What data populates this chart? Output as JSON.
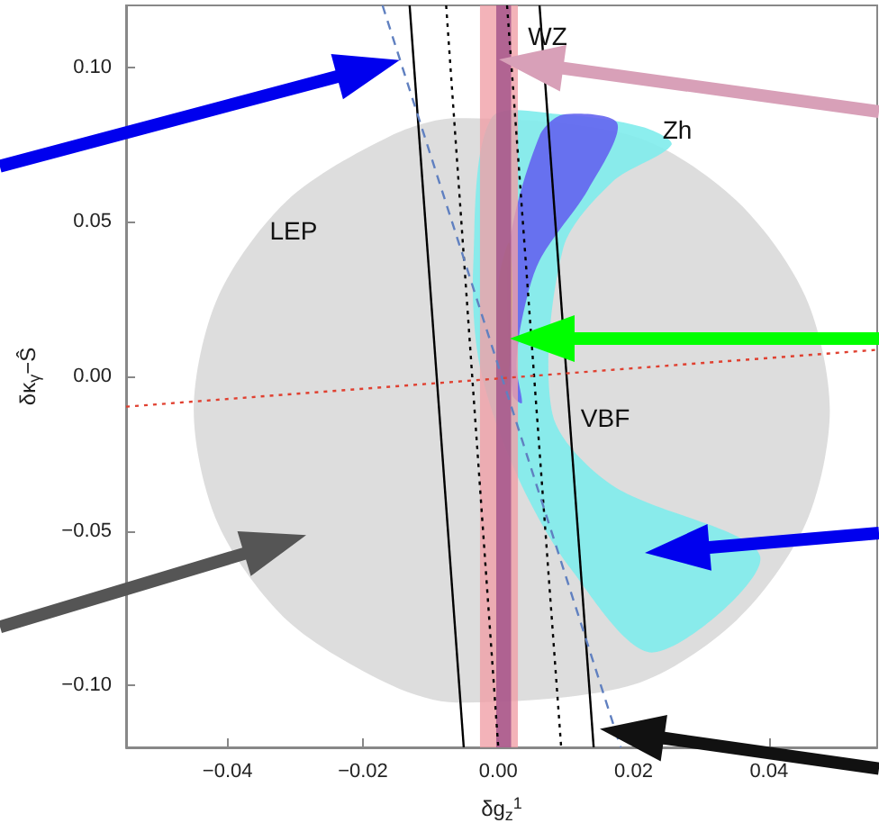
{
  "chart_data": {
    "type": "line",
    "xlabel": "δg$_{z}$$^{1}$",
    "ylabel": "δκ$_{γ}$−Ŝ",
    "xlim": [
      -0.055,
      0.056
    ],
    "ylim": [
      -0.12,
      0.12
    ],
    "xticks": [
      {
        "value": -0.04,
        "label": "−0.04"
      },
      {
        "value": -0.02,
        "label": "−0.02"
      },
      {
        "value": 0,
        "label": "0.00"
      },
      {
        "value": 0.02,
        "label": "0.02"
      },
      {
        "value": 0.04,
        "label": "0.04"
      }
    ],
    "yticks": [
      {
        "value": -0.1,
        "label": "−0.10"
      },
      {
        "value": -0.05,
        "label": "−0.05"
      },
      {
        "value": 0,
        "label": "0.00"
      },
      {
        "value": 0.05,
        "label": "0.05"
      },
      {
        "value": 0.1,
        "label": "0.10"
      }
    ],
    "grid": false,
    "marker": "none",
    "series": [
      {
        "type": "area",
        "name": "LEP",
        "color": "#d9d9d9",
        "x": [
          0.049,
          0.0454,
          0.0352,
          0.02,
          -0.0062,
          -0.016,
          -0.0312,
          -0.0414,
          -0.045,
          -0.0414,
          -0.0312,
          -0.016,
          -0.0062,
          0.02,
          0.0352,
          0.0454
        ],
        "values": [
          -0.011,
          0.0258,
          0.0569,
          0.0777,
          0.0835,
          0.0777,
          0.0569,
          0.0258,
          -0.011,
          -0.0478,
          -0.0789,
          -0.0997,
          -0.1055,
          -0.0997,
          -0.0789,
          -0.0478
        ]
      },
      {
        "type": "area",
        "name": "Zh",
        "color": "#80ecec",
        "x": [
          -0.001,
          -0.0037,
          -0.0027,
          0.0027,
          0.0107,
          0.0229,
          0.0387,
          0.0168,
          0.008,
          0.0096,
          0.0168,
          0.0256,
          0.0213,
          0.0096
        ],
        "values": [
          0.0836,
          0.0357,
          0.003,
          -0.0317,
          -0.0622,
          -0.0893,
          -0.0582,
          -0.0352,
          -0.0121,
          0.0415,
          0.0628,
          0.0749,
          0.0807,
          0.0847
        ]
      },
      {
        "type": "area",
        "color": "#6464f0",
        "x": [
          0.0096,
          0.0176,
          0.0133,
          0.0061,
          0.0035,
          0.0027,
          0.0035,
          0.0021,
          0.0016,
          0.0061
        ],
        "values": [
          0.0847,
          0.0818,
          0.0605,
          0.0375,
          0.0184,
          0.003,
          -0.0086,
          -0.006,
          0.0415,
          0.0778
        ]
      },
      {
        "type": "area",
        "color": "#80e020",
        "x": [
          0.0016,
          0.0021,
          0.0013,
          0.0,
          0.0
        ],
        "values": [
          0.0432,
          0.026,
          -0.0029,
          0.0069,
          0.03
        ]
      },
      {
        "color": "#000000",
        "line_style": "solid",
        "x": [
          -0.0131,
          -0.0051
        ],
        "values": [
          0.12,
          -0.12
        ]
      },
      {
        "color": "#000000",
        "line_style": "solid",
        "x": [
          0.0061,
          0.0141
        ],
        "values": [
          0.12,
          -0.12
        ]
      },
      {
        "color": "#000000",
        "line_style": "dotted",
        "x": [
          -0.0077,
          0.0
        ],
        "values": [
          0.12,
          -0.12
        ]
      },
      {
        "color": "#000000",
        "line_style": "dotted",
        "x": [
          0.0013,
          0.0093
        ],
        "values": [
          0.12,
          -0.12
        ]
      },
      {
        "color": "#6080c0",
        "line_style": "dashed",
        "x": [
          -0.0171,
          0.0181
        ],
        "values": [
          0.12,
          -0.12
        ]
      },
      {
        "color": "#e04030",
        "line_style": "dotted",
        "x": [
          -0.055,
          0.056
        ],
        "values": [
          -0.0098,
          0.0086
        ]
      }
    ],
    "bands": [
      {
        "axis": "x",
        "from": -0.0027,
        "to": 0.0029,
        "color": "#f0a0a8",
        "label": "WZ"
      },
      {
        "axis": "x",
        "from": -0.0003,
        "to": 0.0019,
        "color": "#a05088"
      }
    ],
    "annotations": [
      "VBF"
    ]
  }
}
